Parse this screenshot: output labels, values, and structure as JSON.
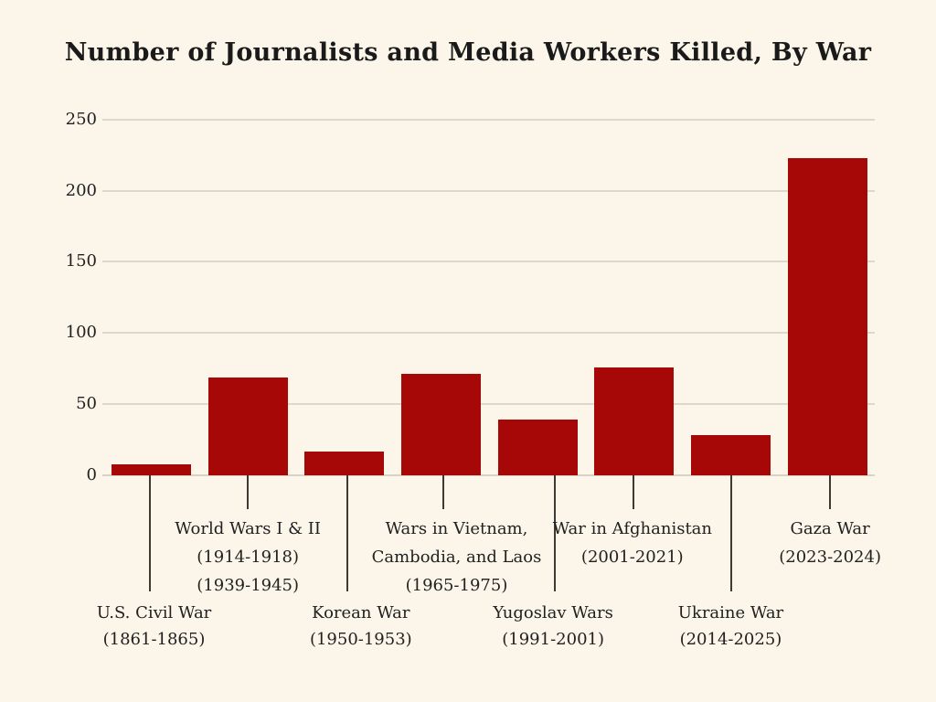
{
  "chart_data": {
    "type": "bar",
    "title": "Number of Journalists and Media Workers Killed, By War",
    "categories": [
      "U.S. Civil War (1861-1865)",
      "World Wars I & II (1914-1918, 1939-1945)",
      "Korean War (1950-1953)",
      "Wars in Vietnam, Cambodia, and Laos (1965-1975)",
      "Yugoslav Wars (1991-2001)",
      "War in Afghanistan (2001-2021)",
      "Ukraine War (2014-2025)",
      "Gaza War (2023-2024)"
    ],
    "values": [
      8,
      69,
      17,
      71,
      39,
      76,
      28,
      223
    ],
    "bars": [
      {
        "label_lines": [
          "U.S. Civil War",
          "(1861-1865)"
        ],
        "value": 8,
        "label_row": "lower"
      },
      {
        "label_lines": [
          "World Wars I & II",
          "(1914-1918)",
          "(1939-1945)"
        ],
        "value": 69,
        "label_row": "upper"
      },
      {
        "label_lines": [
          "Korean War",
          "(1950-1953)"
        ],
        "value": 17,
        "label_row": "lower"
      },
      {
        "label_lines": [
          "Wars in Vietnam,",
          "Cambodia, and Laos",
          "(1965-1975)"
        ],
        "value": 71,
        "label_row": "upper"
      },
      {
        "label_lines": [
          "Yugoslav Wars",
          "(1991-2001)"
        ],
        "value": 39,
        "label_row": "lower"
      },
      {
        "label_lines": [
          "War in Afghanistan",
          "(2001-2021)"
        ],
        "value": 76,
        "label_row": "upper"
      },
      {
        "label_lines": [
          "Ukraine War",
          "(2014-2025)"
        ],
        "value": 28,
        "label_row": "lower"
      },
      {
        "label_lines": [
          "Gaza War",
          "(2023-2024)"
        ],
        "value": 223,
        "label_row": "upper"
      }
    ],
    "y_ticks": [
      0,
      50,
      100,
      150,
      200,
      250
    ],
    "ylim": [
      0,
      250
    ],
    "xlabel": "",
    "ylabel": "",
    "grid": "horizontal",
    "legend": "none",
    "colors": {
      "bar": "#A60808",
      "background": "#FBF6E9",
      "gridline": "#DDD8CA",
      "axis_line": "#D8D3C4",
      "leader_line": "#3D3A33",
      "text": "#212121",
      "title": "#1A1A1A"
    }
  }
}
